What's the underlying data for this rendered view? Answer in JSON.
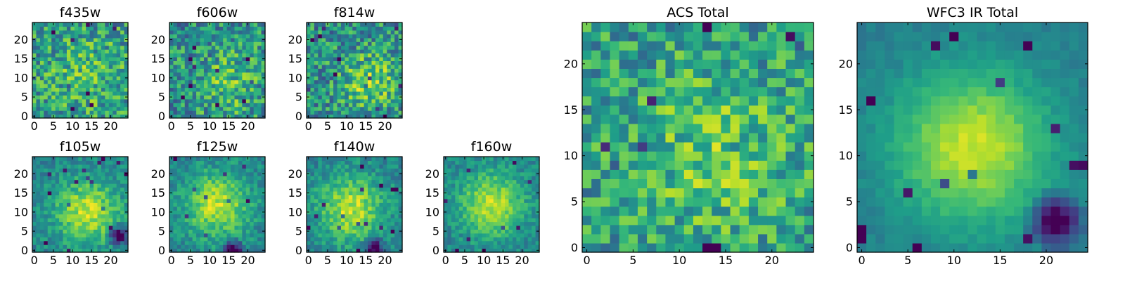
{
  "chart_data": {
    "type": "heatmap",
    "colormap": "viridis",
    "grid": false,
    "panels": [
      {
        "name": "f435w",
        "title": "f435w",
        "grid_size": 25,
        "xticks": [
          "0",
          "5",
          "10",
          "15",
          "20"
        ],
        "yticks": [
          "0",
          "5",
          "10",
          "15",
          "20"
        ],
        "seed": 11,
        "centroid": [
          14,
          11
        ],
        "sigma": 6,
        "amplitude": 0.15,
        "noise": 0.45,
        "hot_edge": [],
        "baseline": 0.55
      },
      {
        "name": "f606w",
        "title": "f606w",
        "grid_size": 25,
        "xticks": [
          "0",
          "5",
          "10",
          "15",
          "20"
        ],
        "yticks": [
          "0",
          "5",
          "10",
          "15",
          "20"
        ],
        "seed": 23,
        "centroid": [
          15,
          9
        ],
        "sigma": 6,
        "amplitude": 0.2,
        "noise": 0.45,
        "hot_edge": [],
        "baseline": 0.5
      },
      {
        "name": "f814w",
        "title": "f814w",
        "grid_size": 25,
        "xticks": [
          "0",
          "5",
          "10",
          "15",
          "20"
        ],
        "yticks": [
          "0",
          "5",
          "10",
          "15",
          "20"
        ],
        "seed": 37,
        "centroid": [
          16,
          9
        ],
        "sigma": 5,
        "amplitude": 0.3,
        "noise": 0.45,
        "hot_edge": [],
        "baseline": 0.5
      },
      {
        "name": "f105w",
        "title": "f105w",
        "grid_size": 25,
        "xticks": [
          "0",
          "5",
          "10",
          "15",
          "20"
        ],
        "yticks": [
          "0",
          "5",
          "10",
          "15",
          "20"
        ],
        "seed": 41,
        "centroid": [
          14,
          10
        ],
        "sigma": 6,
        "amplitude": 0.45,
        "noise": 0.22,
        "hot_edge": [
          22,
          4
        ],
        "baseline": 0.45
      },
      {
        "name": "f125w",
        "title": "f125w",
        "grid_size": 25,
        "xticks": [
          "0",
          "5",
          "10",
          "15",
          "20"
        ],
        "yticks": [
          "0",
          "5",
          "10",
          "15",
          "20"
        ],
        "seed": 53,
        "centroid": [
          12,
          12
        ],
        "sigma": 6,
        "amplitude": 0.45,
        "noise": 0.22,
        "hot_edge": [
          16,
          0
        ],
        "baseline": 0.45
      },
      {
        "name": "f140w",
        "title": "f140w",
        "grid_size": 25,
        "xticks": [
          "0",
          "5",
          "10",
          "15",
          "20"
        ],
        "yticks": [
          "0",
          "5",
          "10",
          "15",
          "20"
        ],
        "seed": 67,
        "centroid": [
          11,
          11
        ],
        "sigma": 6,
        "amplitude": 0.45,
        "noise": 0.22,
        "hot_edge": [
          17,
          1
        ],
        "baseline": 0.45
      },
      {
        "name": "f160w",
        "title": "f160w",
        "grid_size": 25,
        "xticks": [
          "0",
          "5",
          "10",
          "15",
          "20"
        ],
        "yticks": [
          "0",
          "5",
          "10",
          "15",
          "20"
        ],
        "seed": 79,
        "centroid": [
          12,
          12
        ],
        "sigma": 6,
        "amplitude": 0.45,
        "noise": 0.2,
        "hot_edge": [],
        "baseline": 0.45
      },
      {
        "name": "acs-total",
        "title": "ACS Total",
        "grid_size": 25,
        "xticks": [
          "0",
          "5",
          "10",
          "15",
          "20"
        ],
        "yticks": [
          "0",
          "5",
          "10",
          "15",
          "20"
        ],
        "seed": 97,
        "centroid": [
          14,
          10
        ],
        "sigma": 6,
        "amplitude": 0.2,
        "noise": 0.4,
        "hot_edge": [],
        "baseline": 0.55
      },
      {
        "name": "wfc3-ir-total",
        "title": "WFC3 IR Total",
        "grid_size": 25,
        "xticks": [
          "0",
          "5",
          "10",
          "15",
          "20"
        ],
        "yticks": [
          "0",
          "5",
          "10",
          "15",
          "20"
        ],
        "seed": 101,
        "centroid": [
          12,
          11
        ],
        "sigma": 6,
        "amplitude": 0.5,
        "noise": 0.08,
        "hot_edge": [
          21,
          3
        ],
        "baseline": 0.42
      }
    ]
  }
}
